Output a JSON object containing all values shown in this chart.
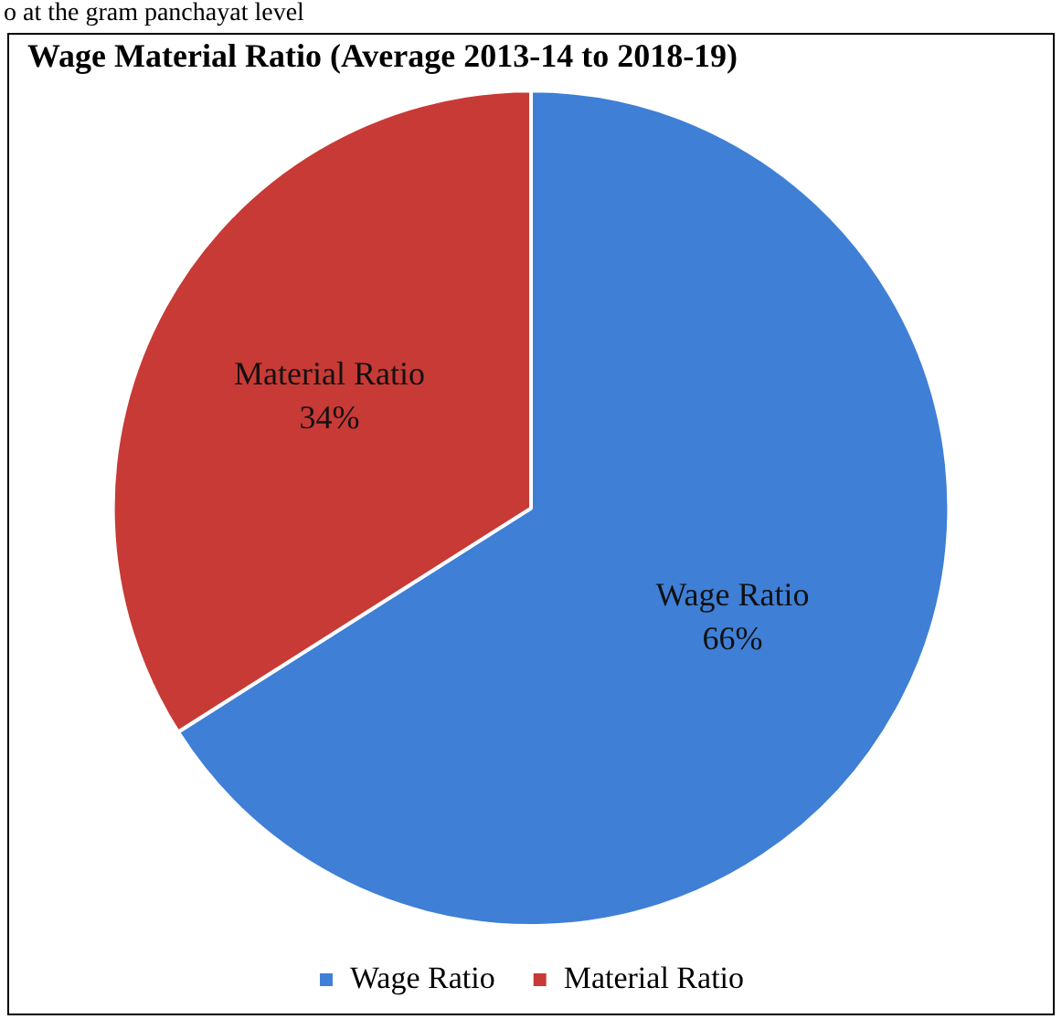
{
  "chart_data": {
    "type": "pie",
    "title": "Wage Material Ratio (Average 2013-14 to 2018-19)",
    "annotations": [
      "o at the gram panchayat level"
    ],
    "categories": [
      "Wage Ratio",
      "Material Ratio"
    ],
    "values": [
      66,
      34
    ],
    "colors": [
      "#3f7fd6",
      "#c83a36"
    ],
    "value_labels": [
      "66%",
      "34%"
    ],
    "legend": "bottom"
  }
}
